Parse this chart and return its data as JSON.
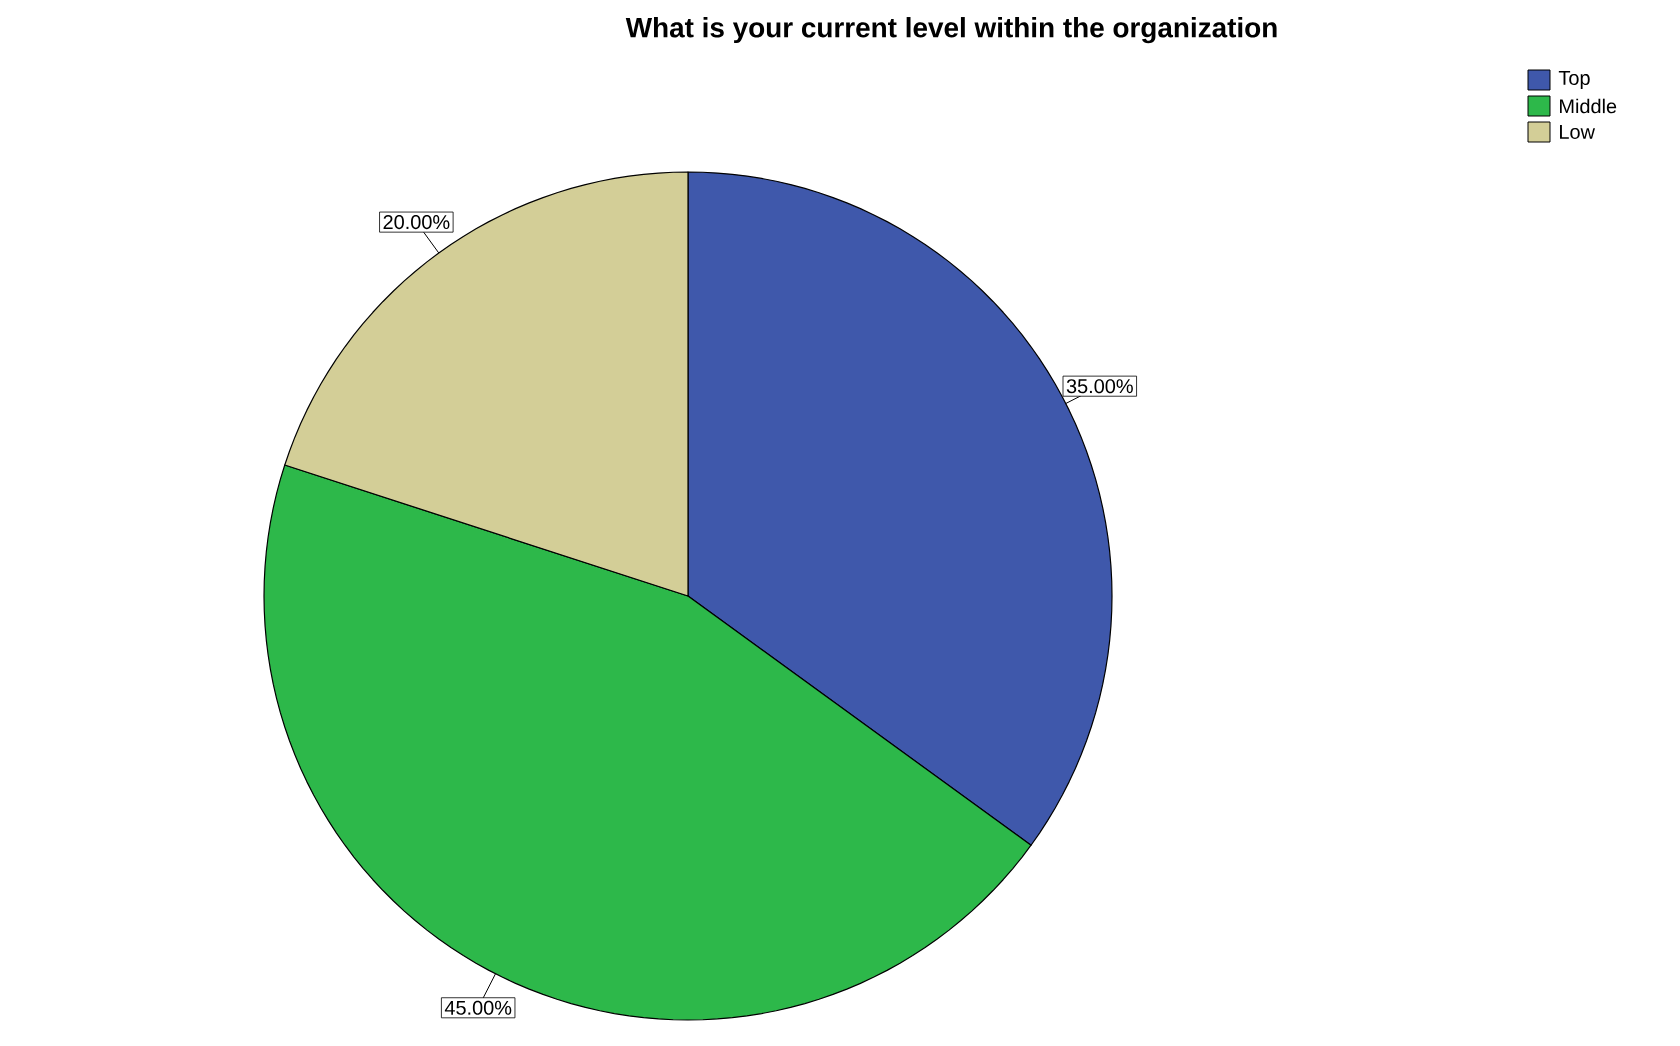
{
  "chart_data": {
    "type": "pie",
    "title": "What is your current level within the organization",
    "categories": [
      "Top",
      "Middle",
      "Low"
    ],
    "values": [
      35,
      45,
      20
    ],
    "colors": [
      "#3f58ab",
      "#2db84a",
      "#d3ce97"
    ],
    "value_labels": [
      "35.00%",
      "45.00%",
      "20.00%"
    ],
    "legend": "top right"
  }
}
